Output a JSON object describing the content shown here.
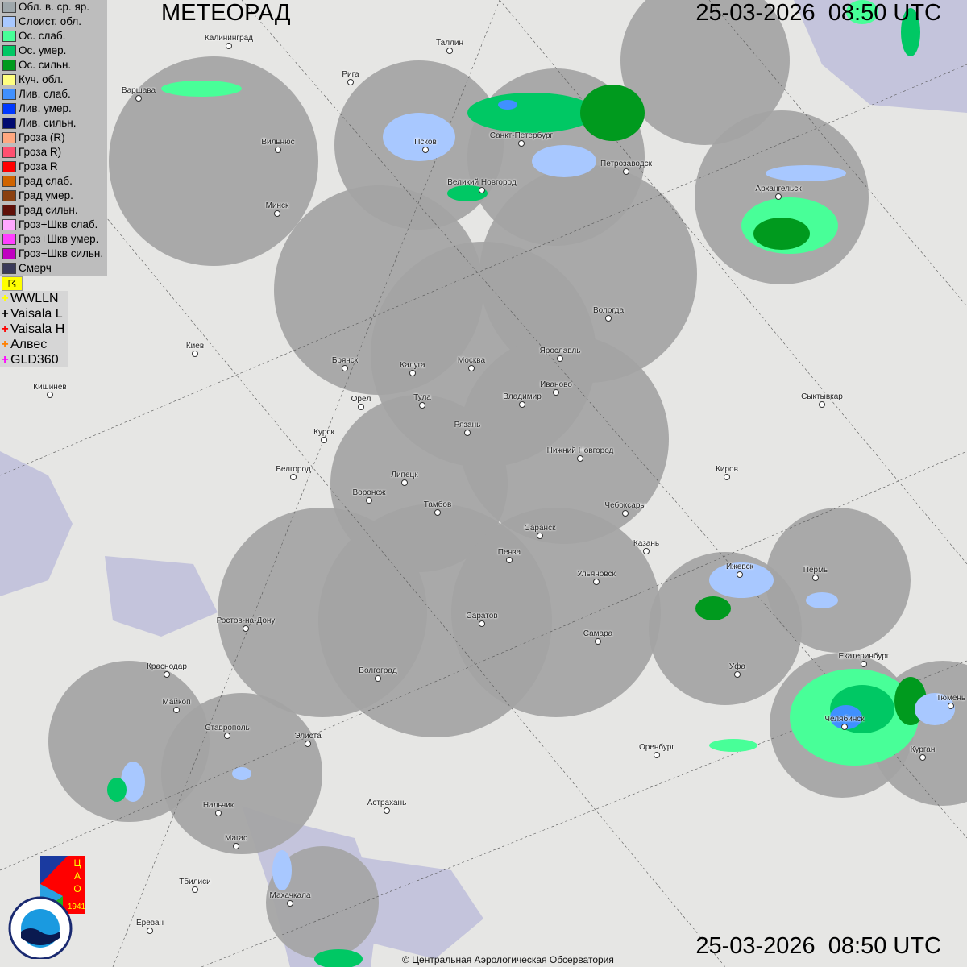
{
  "header": {
    "title": "МЕТЕОРАД",
    "timestamp": "25-03-2026  08:50 UTC"
  },
  "footer": {
    "timestamp": "25-03-2026  08:50 UTC",
    "copyright": "© Центральная Аэрологическая Обсерватория"
  },
  "legend": {
    "items": [
      {
        "label": "Обл. в. ср. яр.",
        "color": "#9ea7ab"
      },
      {
        "label": "Слоист. обл.",
        "color": "#a8c8ff"
      },
      {
        "label": "Ос. слаб.",
        "color": "#48ff98"
      },
      {
        "label": "Ос. умер.",
        "color": "#00c864"
      },
      {
        "label": "Ос. сильн.",
        "color": "#009a1e"
      },
      {
        "label": "Куч. обл.",
        "color": "#ffff80"
      },
      {
        "label": "Лив. слаб.",
        "color": "#4090ff"
      },
      {
        "label": "Лив. умер.",
        "color": "#0038ff"
      },
      {
        "label": "Лив. сильн.",
        "color": "#000a70"
      },
      {
        "label": "Гроза (R)",
        "color": "#ffa880"
      },
      {
        "label": "Гроза R)",
        "color": "#ff5070"
      },
      {
        "label": "Гроза R",
        "color": "#ff0000"
      },
      {
        "label": "Град слаб.",
        "color": "#d06400"
      },
      {
        "label": "Град умер.",
        "color": "#8a4010"
      },
      {
        "label": "Град сильн.",
        "color": "#601008"
      },
      {
        "label": "Гроз+Шкв слаб.",
        "color": "#ffa8ff"
      },
      {
        "label": "Гроз+Шкв умер.",
        "color": "#ff40ff"
      },
      {
        "label": "Гроз+Шкв сильн.",
        "color": "#c000c0"
      },
      {
        "label": "Смерч",
        "color": "#3a3a5a"
      }
    ]
  },
  "flag_button": {
    "icon": "flag-icon",
    "glyph": "☈"
  },
  "lightning": {
    "items": [
      {
        "label": "WWLLN",
        "color": "#ffff00"
      },
      {
        "label": "Vaisala L",
        "color": "#000000"
      },
      {
        "label": "Vaisala H",
        "color": "#ff0000"
      },
      {
        "label": "Алвес",
        "color": "#ff8000"
      },
      {
        "label": "GLD360",
        "color": "#ff00ff"
      }
    ]
  },
  "cities": [
    "Калининград",
    "Таллин",
    "Рига",
    "Варшава",
    "Санкт-Петербург",
    "Псков",
    "Вильнюс",
    "Петрозаводск",
    "Великий Новгород",
    "Архангельск",
    "Минск",
    "Вологда",
    "Ярославль",
    "Брянск",
    "Калуга",
    "Москва",
    "Киев",
    "Иваново",
    "Тула",
    "Владимир",
    "Орёл",
    "Сыктывкар",
    "Кишинёв",
    "Рязань",
    "Курск",
    "Нижний Новгород",
    "Белгород",
    "Киров",
    "Липецк",
    "Воронеж",
    "Тамбов",
    "Чебоксары",
    "Саранск",
    "Казань",
    "Пенза",
    "Ижевск",
    "Пермь",
    "Ульяновск",
    "Ростов-на-Дону",
    "Саратов",
    "Самара",
    "Екатеринбург",
    "Краснодар",
    "Уфа",
    "Волгоград",
    "Майкоп",
    "Тюмень",
    "Челябинск",
    "Ставрополь",
    "Элиста",
    "Оренбург",
    "Курган",
    "Астрахань",
    "Нальчик",
    "Магас",
    "Тбилиси",
    "Махачкала",
    "Ереван"
  ],
  "logos": {
    "cao": "ЦАО 1941",
    "roshydromet": "РОСГИДРОМЕТ ROSHYDROMET"
  }
}
